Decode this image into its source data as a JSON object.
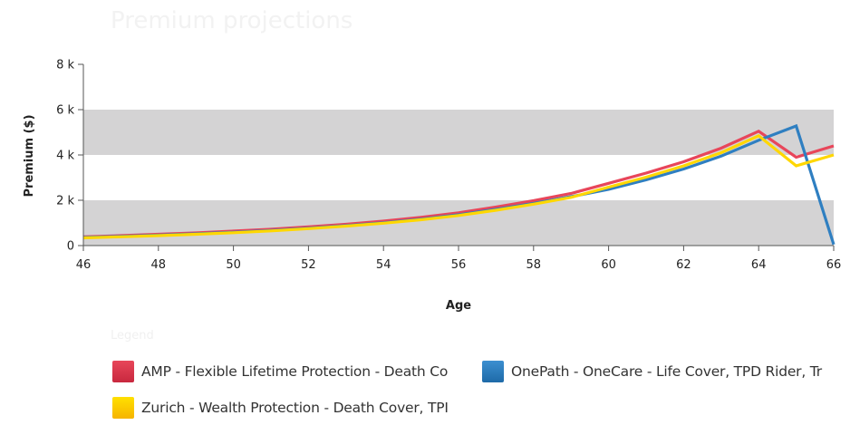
{
  "chart_title": "Premium projections",
  "legend_title": "Legend",
  "chart_data": {
    "type": "line",
    "xlabel": "Age",
    "ylabel": "Premium ($)",
    "xlim": [
      46,
      66
    ],
    "ylim": [
      0,
      8000
    ],
    "x_ticks": [
      46,
      48,
      50,
      52,
      54,
      56,
      58,
      60,
      62,
      64,
      66
    ],
    "y_ticks": [
      0,
      2000,
      4000,
      6000,
      8000
    ],
    "y_tick_labels": [
      "0",
      "2 k",
      "4 k",
      "6 k",
      "8 k"
    ],
    "grid": "alternating horizontal bands",
    "x": [
      46,
      47,
      48,
      49,
      50,
      51,
      52,
      53,
      54,
      55,
      56,
      57,
      58,
      59,
      60,
      61,
      62,
      63,
      64,
      65,
      66
    ],
    "series": [
      {
        "name": "AMP - Flexible Lifetime Protection - Death Cover",
        "color": "#e8465a",
        "values": [
          390,
          440,
          500,
          560,
          640,
          720,
          830,
          940,
          1080,
          1250,
          1450,
          1700,
          1980,
          2300,
          2750,
          3200,
          3700,
          4300,
          5050,
          3900,
          4400
        ]
      },
      {
        "name": "OnePath - OneCare - Life Cover, TPD Rider, Trauma",
        "color": "#2f7fc1",
        "values": [
          360,
          410,
          460,
          520,
          590,
          670,
          770,
          880,
          1010,
          1170,
          1360,
          1600,
          1860,
          2160,
          2480,
          2900,
          3380,
          3950,
          4650,
          5280,
          50
        ]
      },
      {
        "name": "Zurich - Wealth Protection - Death Cover, TPD",
        "color": "#ffd700",
        "values": [
          340,
          390,
          440,
          500,
          570,
          650,
          750,
          860,
          990,
          1140,
          1330,
          1560,
          1830,
          2130,
          2580,
          3020,
          3520,
          4100,
          4850,
          3520,
          4000
        ]
      }
    ]
  },
  "legend": [
    {
      "label": "AMP - Flexible Lifetime Protection - Death Co",
      "color": "#e8465a",
      "color2": "#c8283e"
    },
    {
      "label": "OnePath - OneCare - Life Cover, TPD Rider, Tr",
      "color": "#3c8fd0",
      "color2": "#1e6aa8"
    },
    {
      "label": "Zurich - Wealth Protection - Death Cover, TPI",
      "color": "#ffe000",
      "color2": "#f6b400"
    }
  ]
}
